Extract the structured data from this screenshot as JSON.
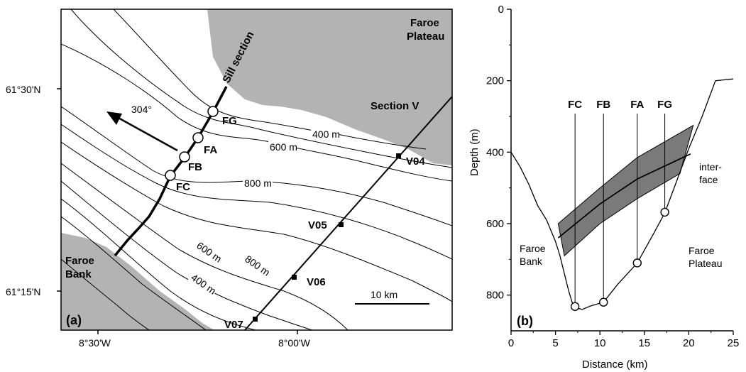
{
  "map": {
    "panel_label": "(a)",
    "land": {
      "faroe_plateau": "Faroe Plateau",
      "faroe_bank": "Faroe Bank",
      "color": "#b3b3b3"
    },
    "sill_section": "Sill section",
    "section_v": "Section V",
    "bearing": "304°",
    "moorings": [
      "FG",
      "FA",
      "FB",
      "FC"
    ],
    "stations": [
      "V04",
      "V05",
      "V06",
      "V07"
    ],
    "contours": {
      "c400_north": "400 m",
      "c600_north": "600 m",
      "c800_mid": "800 m",
      "c600_south": "600 m",
      "c800_south": "800 m",
      "c400_south": "400 m"
    },
    "lat_labels": [
      "61°30'N",
      "61°15'N"
    ],
    "lon_labels": [
      "8°30'W",
      "8°00'W"
    ],
    "scale_bar": "10 km"
  },
  "chart_data": {
    "type": "area",
    "panel_label": "(b)",
    "xlabel": "Distance (km)",
    "ylabel": "Depth (m)",
    "xlim": [
      0,
      25
    ],
    "ylim": [
      900,
      0
    ],
    "x_ticks": [
      "0",
      "5",
      "10",
      "15",
      "20",
      "25"
    ],
    "y_ticks": [
      "0",
      "200",
      "400",
      "600",
      "800"
    ],
    "bottom_profile": {
      "x": [
        0,
        1,
        2,
        3,
        4,
        5,
        5.5,
        6,
        6.5,
        7,
        7.2,
        8,
        9,
        10.4,
        12,
        14.2,
        16,
        17.3,
        18.5,
        20,
        21.5,
        23,
        25
      ],
      "y": [
        400,
        440,
        490,
        550,
        590,
        650,
        690,
        740,
        790,
        830,
        835,
        840,
        830,
        820,
        770,
        710,
        630,
        570,
        490,
        390,
        300,
        200,
        195
      ]
    },
    "interface": {
      "x": [
        5.3,
        10,
        14.2,
        20.2
      ],
      "y": [
        640,
        545,
        475,
        405
      ]
    },
    "interface_band_upper": {
      "x": [
        5.3,
        10,
        14.2,
        20.5
      ],
      "y": [
        600,
        500,
        415,
        325
      ]
    },
    "interface_band_lower": {
      "x": [
        6,
        10,
        14.2,
        19
      ],
      "y": [
        690,
        600,
        530,
        460
      ]
    },
    "moorings": [
      {
        "name": "FC",
        "x": 7.2,
        "y": 832
      },
      {
        "name": "FB",
        "x": 10.4,
        "y": 820
      },
      {
        "name": "FA",
        "x": 14.2,
        "y": 710
      },
      {
        "name": "FG",
        "x": 17.3,
        "y": 568
      }
    ],
    "annotations": {
      "interface_top": "inter-",
      "interface_bottom": "face",
      "left": {
        "top": "Faroe",
        "bottom": "Bank"
      },
      "right": {
        "top": "Faroe",
        "bottom": "Plateau"
      }
    },
    "band_color": "#7a7a7a"
  }
}
